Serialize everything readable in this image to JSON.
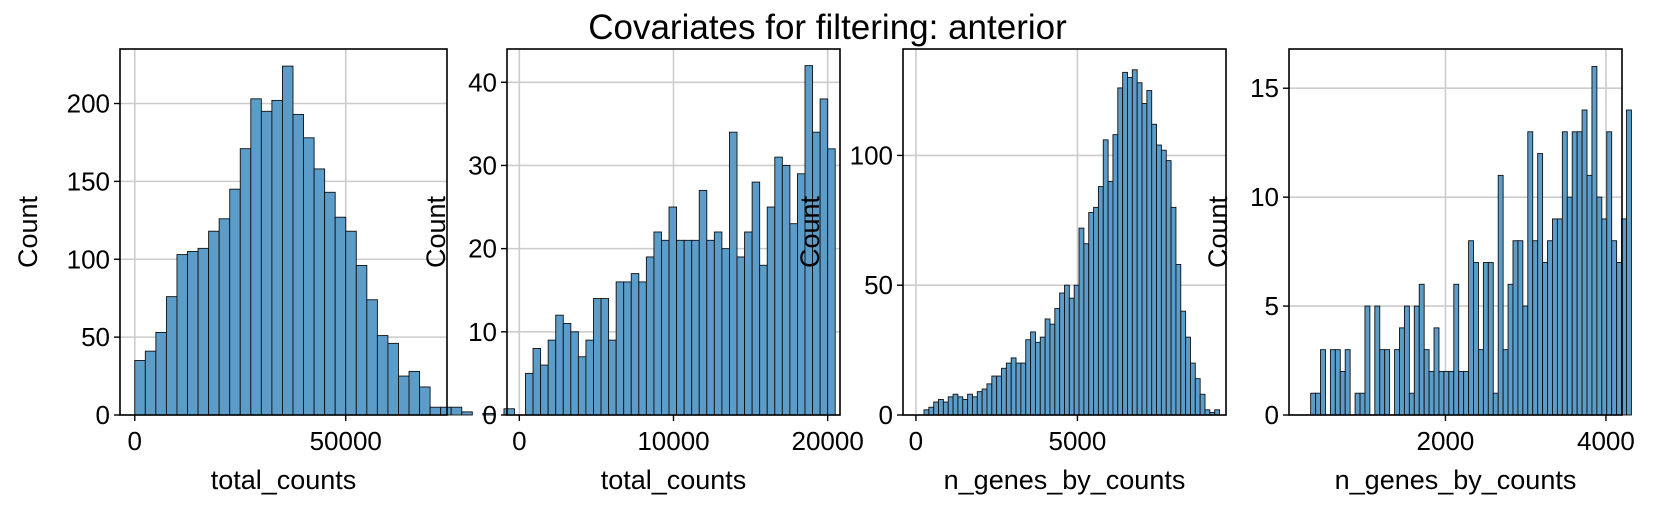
{
  "suptitle": "Covariates for filtering: anterior",
  "colors": {
    "bar_fill": "#5c9cc9",
    "bar_edge": "#111111",
    "grid": "#cccccc",
    "frame": "#000000"
  },
  "chart_data": [
    {
      "type": "bar",
      "xlabel": "total_counts",
      "ylabel": "Count",
      "xlim": [
        -3500,
        74000
      ],
      "ylim": [
        0,
        235
      ],
      "xticks": [
        0,
        50000
      ],
      "yticks": [
        0,
        50,
        100,
        150,
        200
      ],
      "grid": true,
      "bins": {
        "start": 0,
        "width": 2500
      },
      "values": [
        35,
        41,
        53,
        76,
        103,
        105,
        107,
        118,
        126,
        145,
        171,
        203,
        195,
        202,
        224,
        193,
        178,
        158,
        143,
        127,
        118,
        96,
        74,
        51,
        46,
        25,
        28,
        18,
        5,
        5,
        5,
        2,
        0,
        1,
        0,
        4
      ]
    },
    {
      "type": "bar",
      "xlabel": "total_counts",
      "ylabel": "Count",
      "xlim": [
        -800,
        20800
      ],
      "ylim": [
        0,
        44
      ],
      "xticks": [
        0,
        10000,
        20000
      ],
      "yticks": [
        0,
        10,
        20,
        30,
        40
      ],
      "grid": true,
      "bins": {
        "start": 400,
        "width": 490
      },
      "values": [
        5,
        8,
        6,
        9,
        12,
        11,
        10,
        7,
        9,
        14,
        14,
        9,
        16,
        16,
        17,
        16,
        19,
        22,
        21,
        25,
        21,
        21,
        21,
        27,
        21,
        22,
        20,
        34,
        19,
        22,
        28,
        18,
        25,
        31,
        30,
        23,
        29,
        42,
        34,
        38,
        32
      ]
    },
    {
      "type": "bar",
      "xlabel": "n_genes_by_counts",
      "ylabel": "Count",
      "xlim": [
        -400,
        9600
      ],
      "ylim": [
        0,
        141
      ],
      "xticks": [
        0,
        5000
      ],
      "yticks": [
        0,
        50,
        100
      ],
      "grid": true,
      "bins": {
        "start": 250,
        "width": 150
      },
      "values": [
        2,
        3,
        5,
        6,
        5,
        7,
        8,
        7,
        6,
        8,
        7,
        9,
        10,
        12,
        15,
        15,
        18,
        20,
        22,
        20,
        20,
        29,
        32,
        28,
        30,
        37,
        35,
        41,
        47,
        50,
        45,
        50,
        72,
        66,
        78,
        80,
        88,
        106,
        90,
        108,
        126,
        132,
        130,
        133,
        128,
        120,
        125,
        112,
        104,
        102,
        98,
        80,
        58,
        40,
        30,
        20,
        14,
        8,
        2,
        1,
        2
      ]
    },
    {
      "type": "bar",
      "xlabel": "n_genes_by_counts",
      "ylabel": "Count",
      "xlim": [
        50,
        4200
      ],
      "ylim": [
        0,
        16.8
      ],
      "xticks": [
        2000,
        4000
      ],
      "yticks": [
        0,
        5,
        10,
        15
      ],
      "grid": true,
      "bins": {
        "start": 320,
        "width": 61.5
      },
      "values": [
        1,
        1,
        3,
        0,
        3,
        3,
        2,
        3,
        0,
        1,
        1,
        5,
        0,
        5,
        3,
        3,
        0,
        3,
        4,
        5,
        1,
        5,
        6,
        3,
        2,
        4,
        2,
        2,
        2,
        6,
        2,
        2,
        8,
        7,
        3,
        7,
        7,
        1,
        11,
        3,
        6,
        8,
        8,
        5,
        13,
        8,
        12,
        7,
        8,
        9,
        9,
        13,
        10,
        13,
        13,
        14,
        11,
        16,
        10,
        9,
        13,
        8,
        7,
        9,
        14
      ]
    }
  ]
}
